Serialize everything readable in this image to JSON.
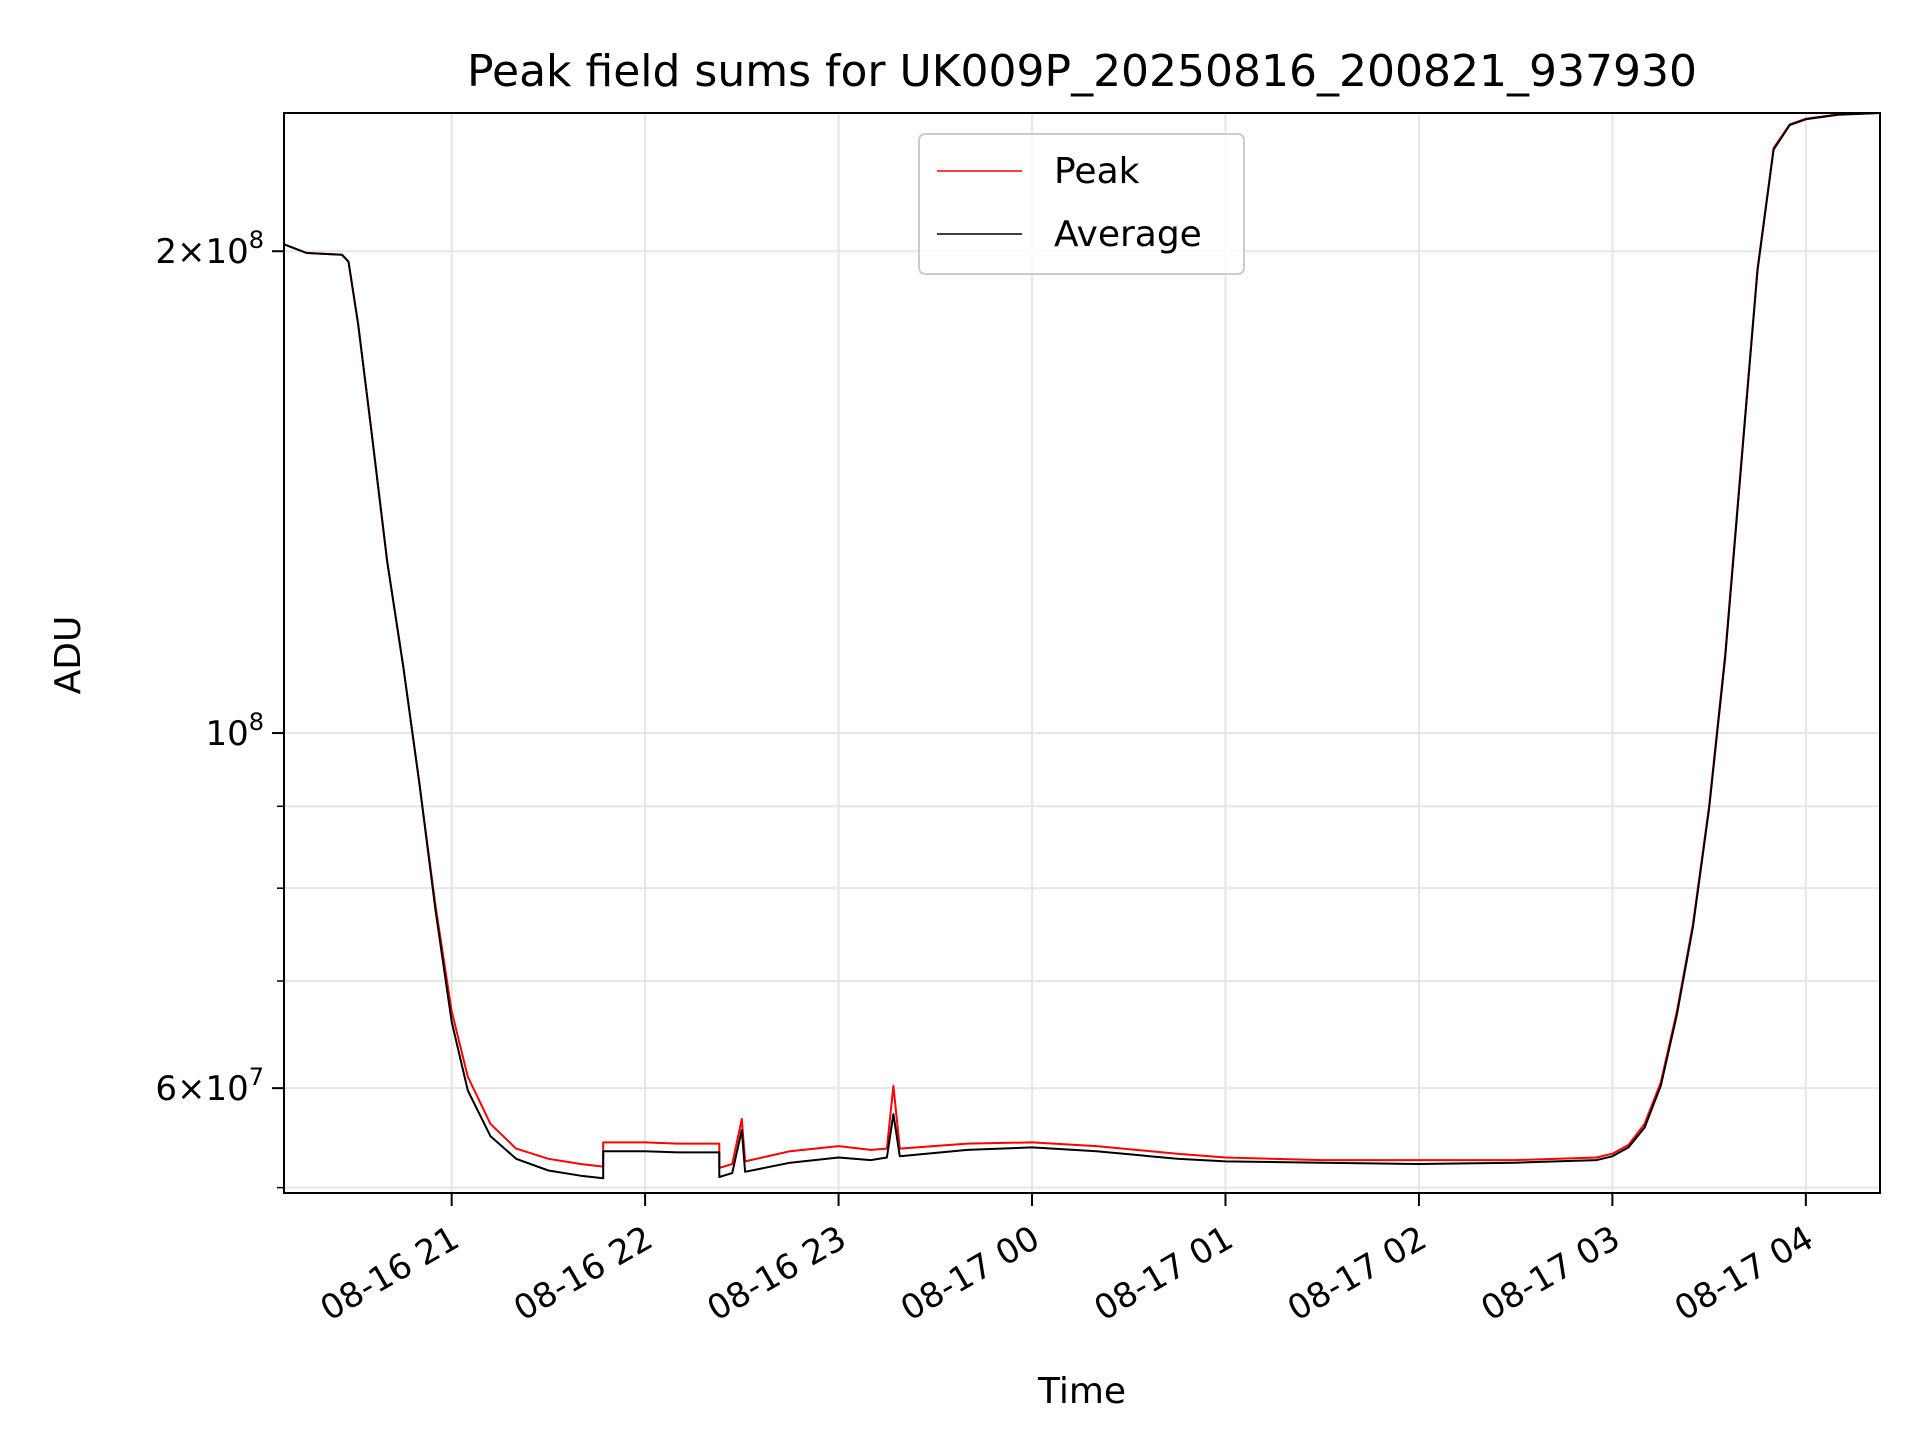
{
  "chart_data": {
    "type": "line",
    "title": "Peak field sums for UK009P_20250816_200821_937930",
    "xlabel": "Time",
    "ylabel": "ADU",
    "yscale": "log",
    "grid": true,
    "legend_position": "top-center",
    "xlim": [
      "2025-08-16 20:08",
      "2025-08-17 04:23"
    ],
    "ylim": [
      51600000,
      244000000
    ],
    "x_ticks": [
      {
        "value": "2025-08-16 21:00",
        "label": "08-16 21"
      },
      {
        "value": "2025-08-16 22:00",
        "label": "08-16 22"
      },
      {
        "value": "2025-08-16 23:00",
        "label": "08-16 23"
      },
      {
        "value": "2025-08-17 00:00",
        "label": "08-17 00"
      },
      {
        "value": "2025-08-17 01:00",
        "label": "08-17 01"
      },
      {
        "value": "2025-08-17 02:00",
        "label": "08-17 02"
      },
      {
        "value": "2025-08-17 03:00",
        "label": "08-17 03"
      },
      {
        "value": "2025-08-17 04:00",
        "label": "08-17 04"
      }
    ],
    "y_ticks_major": [
      {
        "value": 60000000,
        "mantissa": "6",
        "exponent": "7"
      },
      {
        "value": 100000000,
        "mantissa": "",
        "exponent": "8"
      },
      {
        "value": 200000000,
        "mantissa": "2",
        "exponent": "8"
      }
    ],
    "y_ticks_minor": [
      70000000,
      80000000,
      90000000
    ],
    "series": [
      {
        "name": "Peak",
        "color": "#ff0000",
        "points": [
          [
            "2025-08-16 20:08",
            202000000
          ],
          [
            "2025-08-16 20:15",
            199500000
          ],
          [
            "2025-08-16 20:26",
            199000000
          ],
          [
            "2025-08-16 20:28",
            197000000
          ],
          [
            "2025-08-16 20:31",
            180000000
          ],
          [
            "2025-08-16 20:35",
            155000000
          ],
          [
            "2025-08-16 20:40",
            128000000
          ],
          [
            "2025-08-16 20:45",
            110000000
          ],
          [
            "2025-08-16 20:50",
            93000000
          ],
          [
            "2025-08-16 20:55",
            78000000
          ],
          [
            "2025-08-16 21:00",
            67000000
          ],
          [
            "2025-08-16 21:05",
            61000000
          ],
          [
            "2025-08-16 21:12",
            57000000
          ],
          [
            "2025-08-16 21:20",
            55000000
          ],
          [
            "2025-08-16 21:30",
            54200000
          ],
          [
            "2025-08-16 21:40",
            53800000
          ],
          [
            "2025-08-16 21:47",
            53600000
          ],
          [
            "2025-08-16 21:47",
            55500000
          ],
          [
            "2025-08-16 22:00",
            55500000
          ],
          [
            "2025-08-16 22:10",
            55400000
          ],
          [
            "2025-08-16 22:23",
            55400000
          ],
          [
            "2025-08-16 22:23",
            53500000
          ],
          [
            "2025-08-16 22:27",
            53800000
          ],
          [
            "2025-08-16 22:30",
            57400000
          ],
          [
            "2025-08-16 22:31",
            54000000
          ],
          [
            "2025-08-16 22:45",
            54800000
          ],
          [
            "2025-08-16 23:00",
            55200000
          ],
          [
            "2025-08-16 23:10",
            54900000
          ],
          [
            "2025-08-16 23:15",
            55000000
          ],
          [
            "2025-08-16 23:17",
            60200000
          ],
          [
            "2025-08-16 23:19",
            55000000
          ],
          [
            "2025-08-16 23:40",
            55400000
          ],
          [
            "2025-08-17 00:00",
            55500000
          ],
          [
            "2025-08-17 00:20",
            55200000
          ],
          [
            "2025-08-17 00:45",
            54600000
          ],
          [
            "2025-08-17 01:00",
            54300000
          ],
          [
            "2025-08-17 01:30",
            54100000
          ],
          [
            "2025-08-17 02:00",
            54100000
          ],
          [
            "2025-08-17 02:30",
            54100000
          ],
          [
            "2025-08-17 02:55",
            54300000
          ],
          [
            "2025-08-17 03:00",
            54600000
          ],
          [
            "2025-08-17 03:05",
            55300000
          ],
          [
            "2025-08-17 03:10",
            57000000
          ],
          [
            "2025-08-17 03:15",
            60500000
          ],
          [
            "2025-08-17 03:20",
            67000000
          ],
          [
            "2025-08-17 03:25",
            76000000
          ],
          [
            "2025-08-17 03:30",
            90000000
          ],
          [
            "2025-08-17 03:35",
            112000000
          ],
          [
            "2025-08-17 03:40",
            148000000
          ],
          [
            "2025-08-17 03:45",
            195000000
          ],
          [
            "2025-08-17 03:50",
            232000000
          ],
          [
            "2025-08-17 03:55",
            240000000
          ],
          [
            "2025-08-17 04:00",
            242000000
          ],
          [
            "2025-08-17 04:10",
            243500000
          ],
          [
            "2025-08-17 04:23",
            244000000
          ]
        ]
      },
      {
        "name": "Average",
        "color": "#000000",
        "points": [
          [
            "2025-08-16 20:08",
            202000000
          ],
          [
            "2025-08-16 20:15",
            199500000
          ],
          [
            "2025-08-16 20:26",
            199000000
          ],
          [
            "2025-08-16 20:28",
            197000000
          ],
          [
            "2025-08-16 20:31",
            180000000
          ],
          [
            "2025-08-16 20:35",
            155000000
          ],
          [
            "2025-08-16 20:40",
            128000000
          ],
          [
            "2025-08-16 20:45",
            110000000
          ],
          [
            "2025-08-16 20:50",
            93000000
          ],
          [
            "2025-08-16 20:55",
            77500000
          ],
          [
            "2025-08-16 21:00",
            66000000
          ],
          [
            "2025-08-16 21:05",
            59800000
          ],
          [
            "2025-08-16 21:12",
            56000000
          ],
          [
            "2025-08-16 21:20",
            54200000
          ],
          [
            "2025-08-16 21:30",
            53300000
          ],
          [
            "2025-08-16 21:40",
            52900000
          ],
          [
            "2025-08-16 21:47",
            52700000
          ],
          [
            "2025-08-16 21:47",
            54800000
          ],
          [
            "2025-08-16 22:00",
            54800000
          ],
          [
            "2025-08-16 22:10",
            54700000
          ],
          [
            "2025-08-16 22:23",
            54700000
          ],
          [
            "2025-08-16 22:23",
            52800000
          ],
          [
            "2025-08-16 22:27",
            53100000
          ],
          [
            "2025-08-16 22:30",
            56500000
          ],
          [
            "2025-08-16 22:31",
            53200000
          ],
          [
            "2025-08-16 22:45",
            53900000
          ],
          [
            "2025-08-16 23:00",
            54300000
          ],
          [
            "2025-08-16 23:10",
            54100000
          ],
          [
            "2025-08-16 23:15",
            54300000
          ],
          [
            "2025-08-16 23:17",
            57800000
          ],
          [
            "2025-08-16 23:19",
            54400000
          ],
          [
            "2025-08-16 23:40",
            54900000
          ],
          [
            "2025-08-17 00:00",
            55100000
          ],
          [
            "2025-08-17 00:20",
            54800000
          ],
          [
            "2025-08-17 00:45",
            54200000
          ],
          [
            "2025-08-17 01:00",
            54000000
          ],
          [
            "2025-08-17 01:30",
            53900000
          ],
          [
            "2025-08-17 02:00",
            53800000
          ],
          [
            "2025-08-17 02:30",
            53900000
          ],
          [
            "2025-08-17 02:55",
            54100000
          ],
          [
            "2025-08-17 03:00",
            54400000
          ],
          [
            "2025-08-17 03:05",
            55100000
          ],
          [
            "2025-08-17 03:10",
            56700000
          ],
          [
            "2025-08-17 03:15",
            60200000
          ],
          [
            "2025-08-17 03:20",
            66700000
          ],
          [
            "2025-08-17 03:25",
            75700000
          ],
          [
            "2025-08-17 03:30",
            89700000
          ],
          [
            "2025-08-17 03:35",
            111500000
          ],
          [
            "2025-08-17 03:40",
            147500000
          ],
          [
            "2025-08-17 03:45",
            194500000
          ],
          [
            "2025-08-17 03:50",
            231500000
          ],
          [
            "2025-08-17 03:55",
            239800000
          ],
          [
            "2025-08-17 04:00",
            241800000
          ],
          [
            "2025-08-17 04:10",
            243400000
          ],
          [
            "2025-08-17 04:23",
            244000000
          ]
        ]
      }
    ]
  }
}
